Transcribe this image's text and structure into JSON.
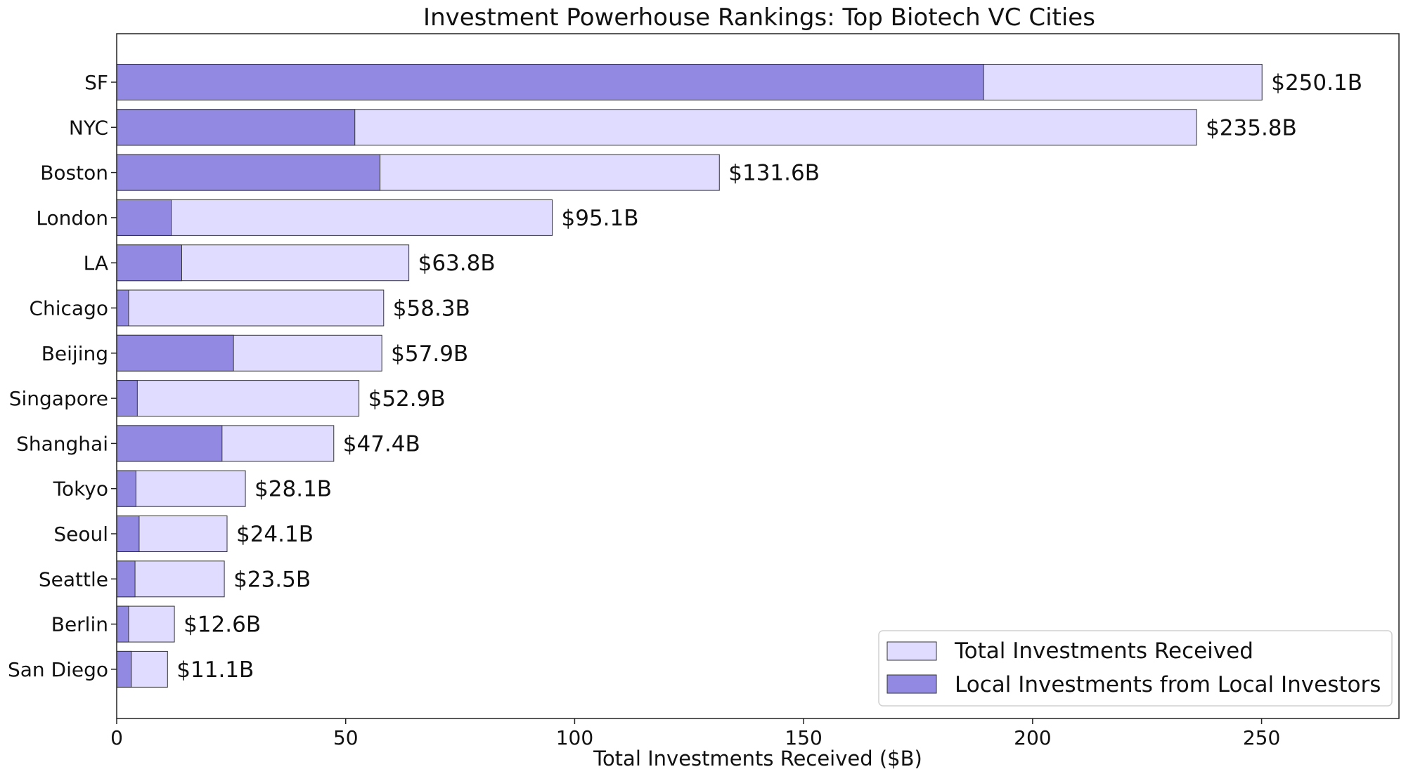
{
  "chart_data": {
    "type": "bar",
    "orientation": "horizontal",
    "title": "Investment Powerhouse Rankings: Top Biotech VC Cities",
    "xlabel": "Total Investments Received ($B)",
    "ylabel": "",
    "xlim": [
      0,
      280
    ],
    "xticks": [
      0,
      50,
      100,
      150,
      200,
      250
    ],
    "grid": false,
    "legend_position": "bottom-right",
    "categories": [
      "SF",
      "NYC",
      "Boston",
      "London",
      "LA",
      "Chicago",
      "Beijing",
      "Singapore",
      "Shanghai",
      "Tokyo",
      "Seoul",
      "Seattle",
      "Berlin",
      "San Diego"
    ],
    "series": [
      {
        "name": "Total Investments Received",
        "color": "#e0dcff",
        "values": [
          250.1,
          235.8,
          131.6,
          95.1,
          63.8,
          58.3,
          57.9,
          52.9,
          47.4,
          28.1,
          24.1,
          23.5,
          12.6,
          11.1
        ]
      },
      {
        "name": "Local Investments from Local Investors",
        "color": "#9189e2",
        "values": [
          189.3,
          52.0,
          57.5,
          11.9,
          14.2,
          2.6,
          25.5,
          4.5,
          23.0,
          4.2,
          4.9,
          4.0,
          2.6,
          3.2
        ]
      }
    ],
    "data_labels": [
      "$250.1B",
      "$235.8B",
      "$131.6B",
      "$95.1B",
      "$63.8B",
      "$58.3B",
      "$57.9B",
      "$52.9B",
      "$47.4B",
      "$28.1B",
      "$24.1B",
      "$23.5B",
      "$12.6B",
      "$11.1B"
    ]
  }
}
